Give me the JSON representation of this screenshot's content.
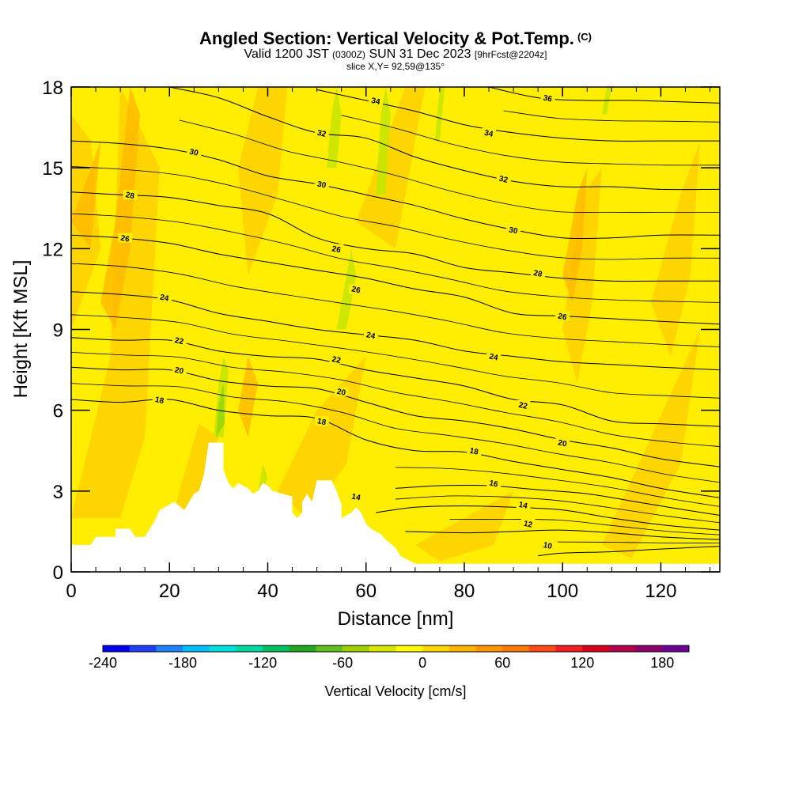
{
  "chart_data": {
    "type": "heatmap",
    "title": "Angled Section: Vertical Velocity & Pot.Temp.",
    "title_suffix": "(C)",
    "subtitle": {
      "prefix": "Valid 1200 JST",
      "zulu": "(0300Z)",
      "date": "SUN 31 Dec 2023",
      "forecast": "[9hrFcst@2204z]"
    },
    "slice": "slice X,Y= 92,59@135°",
    "xlabel": "Distance [nm]",
    "ylabel": "Height [Kft MSL]",
    "xlim": [
      0,
      132
    ],
    "ylim": [
      0,
      18
    ],
    "xticks": [
      0,
      20,
      40,
      60,
      80,
      100,
      120
    ],
    "yticks": [
      0,
      3,
      6,
      9,
      12,
      15,
      18
    ],
    "colorbar": {
      "label": "Vertical Velocity [cm/s]",
      "min": -240,
      "max": 200,
      "ticks": [
        -240,
        -180,
        -120,
        -60,
        0,
        60,
        120,
        180
      ],
      "colors": [
        "#0000f0",
        "#1e40f5",
        "#1e82ff",
        "#00bfff",
        "#00e0e0",
        "#00d8a0",
        "#00c060",
        "#20a81e",
        "#60c020",
        "#a0d000",
        "#d8e600",
        "#ffff00",
        "#ffd700",
        "#ffb400",
        "#ff9400",
        "#ff7800",
        "#ff4a14",
        "#f01e1e",
        "#d7001e",
        "#b4004b",
        "#8c006e",
        "#6e0096"
      ]
    },
    "field_colors": {
      "base": "#ffee00",
      "warm": "#ffd200",
      "warmer": "#ffb800",
      "cool": "#c8e600",
      "cooler": "#9cd80a",
      "terrain": "#ffffff"
    },
    "isentropes": [
      {
        "label": "10",
        "points": [
          [
            95,
            0.6
          ],
          [
            100,
            0.7
          ],
          [
            110,
            0.75
          ],
          [
            120,
            0.85
          ],
          [
            132,
            0.95
          ]
        ]
      },
      {
        "label": "12",
        "points": [
          [
            68,
            1.5
          ],
          [
            80,
            1.45
          ],
          [
            90,
            1.5
          ],
          [
            100,
            1.55
          ],
          [
            110,
            1.45
          ],
          [
            120,
            1.3
          ],
          [
            132,
            1.2
          ]
        ]
      },
      {
        "label": "14",
        "points": [
          [
            62,
            2.2
          ],
          [
            70,
            2.4
          ],
          [
            80,
            2.45
          ],
          [
            90,
            2.4
          ],
          [
            100,
            2.3
          ],
          [
            110,
            2.0
          ],
          [
            120,
            1.75
          ],
          [
            132,
            1.55
          ]
        ]
      },
      {
        "label": "16",
        "points": [
          [
            66,
            3.1
          ],
          [
            75,
            3.2
          ],
          [
            85,
            3.2
          ],
          [
            95,
            3.05
          ],
          [
            105,
            2.9
          ],
          [
            115,
            2.6
          ],
          [
            125,
            2.3
          ],
          [
            132,
            2.1
          ]
        ]
      },
      {
        "label": "18",
        "points": [
          [
            0,
            6.4
          ],
          [
            10,
            6.3
          ],
          [
            20,
            6.4
          ],
          [
            30,
            6.0
          ],
          [
            40,
            5.8
          ],
          [
            50,
            5.7
          ],
          [
            60,
            4.9
          ],
          [
            70,
            4.5
          ],
          [
            80,
            4.45
          ],
          [
            90,
            4.1
          ],
          [
            100,
            3.8
          ],
          [
            110,
            3.5
          ],
          [
            120,
            3.1
          ],
          [
            132,
            2.75
          ]
        ]
      },
      {
        "label": "20",
        "points": [
          [
            0,
            7.6
          ],
          [
            10,
            7.5
          ],
          [
            20,
            7.5
          ],
          [
            30,
            7.1
          ],
          [
            40,
            6.9
          ],
          [
            50,
            6.8
          ],
          [
            60,
            6.3
          ],
          [
            70,
            5.8
          ],
          [
            80,
            5.6
          ],
          [
            90,
            5.3
          ],
          [
            100,
            4.9
          ],
          [
            110,
            4.6
          ],
          [
            120,
            4.2
          ],
          [
            132,
            3.9
          ]
        ]
      },
      {
        "label": "22",
        "points": [
          [
            0,
            8.7
          ],
          [
            10,
            8.6
          ],
          [
            20,
            8.6
          ],
          [
            30,
            8.2
          ],
          [
            40,
            8.0
          ],
          [
            50,
            7.9
          ],
          [
            60,
            7.5
          ],
          [
            70,
            7.2
          ],
          [
            80,
            6.9
          ],
          [
            90,
            6.4
          ],
          [
            100,
            6.2
          ],
          [
            110,
            5.6
          ],
          [
            120,
            5.5
          ],
          [
            132,
            5.4
          ]
        ]
      },
      {
        "label": "24",
        "points": [
          [
            0,
            10.4
          ],
          [
            10,
            10.3
          ],
          [
            20,
            10.1
          ],
          [
            30,
            9.6
          ],
          [
            40,
            9.3
          ],
          [
            50,
            9.0
          ],
          [
            60,
            8.8
          ],
          [
            70,
            8.6
          ],
          [
            80,
            8.2
          ],
          [
            90,
            8.0
          ],
          [
            100,
            7.8
          ],
          [
            110,
            7.7
          ],
          [
            120,
            7.6
          ],
          [
            132,
            7.5
          ]
        ]
      },
      {
        "label": "26",
        "points": [
          [
            0,
            12.5
          ],
          [
            10,
            12.4
          ],
          [
            20,
            12.2
          ],
          [
            30,
            11.8
          ],
          [
            40,
            11.5
          ],
          [
            50,
            11.2
          ],
          [
            60,
            10.9
          ],
          [
            70,
            10.5
          ],
          [
            80,
            10.2
          ],
          [
            90,
            9.6
          ],
          [
            100,
            9.5
          ],
          [
            110,
            9.4
          ],
          [
            120,
            9.3
          ],
          [
            132,
            9.2
          ]
        ]
      },
      {
        "label": "28",
        "points": [
          [
            0,
            14.1
          ],
          [
            10,
            14.0
          ],
          [
            20,
            13.9
          ],
          [
            30,
            13.6
          ],
          [
            40,
            13.3
          ],
          [
            50,
            12.4
          ],
          [
            60,
            12.0
          ],
          [
            70,
            11.8
          ],
          [
            80,
            11.3
          ],
          [
            90,
            11.1
          ],
          [
            100,
            10.9
          ],
          [
            110,
            10.8
          ],
          [
            120,
            10.8
          ],
          [
            132,
            10.8
          ]
        ]
      },
      {
        "label": "30",
        "points": [
          [
            0,
            16.0
          ],
          [
            10,
            15.9
          ],
          [
            20,
            15.7
          ],
          [
            30,
            15.3
          ],
          [
            40,
            14.7
          ],
          [
            50,
            14.4
          ],
          [
            60,
            14.0
          ],
          [
            70,
            13.6
          ],
          [
            80,
            13.1
          ],
          [
            90,
            12.7
          ],
          [
            100,
            12.4
          ],
          [
            110,
            12.4
          ],
          [
            120,
            12.5
          ],
          [
            132,
            12.5
          ]
        ]
      },
      {
        "label": "32",
        "points": [
          [
            20,
            18.0
          ],
          [
            30,
            17.6
          ],
          [
            40,
            16.9
          ],
          [
            50,
            16.3
          ],
          [
            60,
            16.1
          ],
          [
            70,
            15.4
          ],
          [
            80,
            14.9
          ],
          [
            90,
            14.5
          ],
          [
            100,
            14.3
          ],
          [
            110,
            14.3
          ],
          [
            120,
            14.2
          ],
          [
            132,
            14.2
          ]
        ]
      },
      {
        "label": "34",
        "points": [
          [
            50,
            17.9
          ],
          [
            60,
            17.5
          ],
          [
            70,
            17.1
          ],
          [
            80,
            16.6
          ],
          [
            90,
            16.3
          ],
          [
            100,
            16.1
          ],
          [
            110,
            16.0
          ],
          [
            120,
            16.0
          ],
          [
            132,
            16.0
          ]
        ]
      },
      {
        "label": "36",
        "points": [
          [
            85,
            18.0
          ],
          [
            95,
            17.6
          ],
          [
            105,
            17.5
          ],
          [
            115,
            17.5
          ],
          [
            132,
            17.4
          ]
        ]
      }
    ],
    "contour_labels": [
      {
        "text": "10",
        "x": 97,
        "y": 1.0
      },
      {
        "text": "12",
        "x": 93,
        "y": 1.8
      },
      {
        "text": "14",
        "x": 92,
        "y": 2.5
      },
      {
        "text": "14",
        "x": 58,
        "y": 2.8
      },
      {
        "text": "16",
        "x": 86,
        "y": 3.3
      },
      {
        "text": "18",
        "x": 82,
        "y": 4.5
      },
      {
        "text": "18",
        "x": 51,
        "y": 5.6
      },
      {
        "text": "18",
        "x": 18,
        "y": 6.4
      },
      {
        "text": "20",
        "x": 100,
        "y": 4.8
      },
      {
        "text": "20",
        "x": 55,
        "y": 6.7
      },
      {
        "text": "20",
        "x": 22,
        "y": 7.5
      },
      {
        "text": "22",
        "x": 92,
        "y": 6.2
      },
      {
        "text": "22",
        "x": 54,
        "y": 7.9
      },
      {
        "text": "22",
        "x": 22,
        "y": 8.6
      },
      {
        "text": "24",
        "x": 86,
        "y": 8.0
      },
      {
        "text": "24",
        "x": 61,
        "y": 8.8
      },
      {
        "text": "24",
        "x": 19,
        "y": 10.2
      },
      {
        "text": "26",
        "x": 100,
        "y": 9.5
      },
      {
        "text": "26",
        "x": 58,
        "y": 10.5
      },
      {
        "text": "26",
        "x": 54,
        "y": 12.0
      },
      {
        "text": "26",
        "x": 11,
        "y": 12.4
      },
      {
        "text": "28",
        "x": 95,
        "y": 11.1
      },
      {
        "text": "28",
        "x": 12,
        "y": 14.0
      },
      {
        "text": "30",
        "x": 90,
        "y": 12.7
      },
      {
        "text": "30",
        "x": 51,
        "y": 14.4
      },
      {
        "text": "30",
        "x": 25,
        "y": 15.6
      },
      {
        "text": "32",
        "x": 88,
        "y": 14.6
      },
      {
        "text": "32",
        "x": 51,
        "y": 16.3
      },
      {
        "text": "34",
        "x": 85,
        "y": 16.3
      },
      {
        "text": "34",
        "x": 62,
        "y": 17.5
      },
      {
        "text": "36",
        "x": 97,
        "y": 17.6
      }
    ],
    "terrain": [
      [
        0,
        1.0
      ],
      [
        4,
        1.0
      ],
      [
        5,
        1.3
      ],
      [
        9,
        1.3
      ],
      [
        9,
        1.6
      ],
      [
        12,
        1.6
      ],
      [
        13,
        1.3
      ],
      [
        15,
        1.3
      ],
      [
        16,
        1.6
      ],
      [
        17,
        1.9
      ],
      [
        18,
        2.3
      ],
      [
        20,
        2.5
      ],
      [
        21,
        2.6
      ],
      [
        23,
        2.3
      ],
      [
        24,
        2.6
      ],
      [
        25,
        2.9
      ],
      [
        26,
        3.0
      ],
      [
        27,
        3.6
      ],
      [
        28,
        4.8
      ],
      [
        31,
        4.8
      ],
      [
        31,
        3.8
      ],
      [
        32,
        3.3
      ],
      [
        33,
        3.1
      ],
      [
        34,
        3.3
      ],
      [
        36,
        3.1
      ],
      [
        37,
        2.9
      ],
      [
        38,
        3.0
      ],
      [
        39,
        3.3
      ],
      [
        40,
        3.2
      ],
      [
        41,
        3.0
      ],
      [
        43,
        2.9
      ],
      [
        45,
        2.8
      ],
      [
        45,
        2.2
      ],
      [
        46,
        2.0
      ],
      [
        47,
        2.2
      ],
      [
        47,
        2.6
      ],
      [
        48,
        2.9
      ],
      [
        49,
        2.6
      ],
      [
        50,
        3.4
      ],
      [
        53,
        3.4
      ],
      [
        54,
        3.0
      ],
      [
        55,
        2.5
      ],
      [
        55,
        2.0
      ],
      [
        57,
        2.2
      ],
      [
        58,
        2.4
      ],
      [
        59,
        2.2
      ],
      [
        60,
        1.8
      ],
      [
        61,
        1.6
      ],
      [
        63,
        1.4
      ],
      [
        64,
        1.2
      ],
      [
        66,
        0.9
      ],
      [
        67,
        0.6
      ],
      [
        68,
        0.5
      ],
      [
        70,
        0.3
      ],
      [
        132,
        0.3
      ]
    ]
  }
}
